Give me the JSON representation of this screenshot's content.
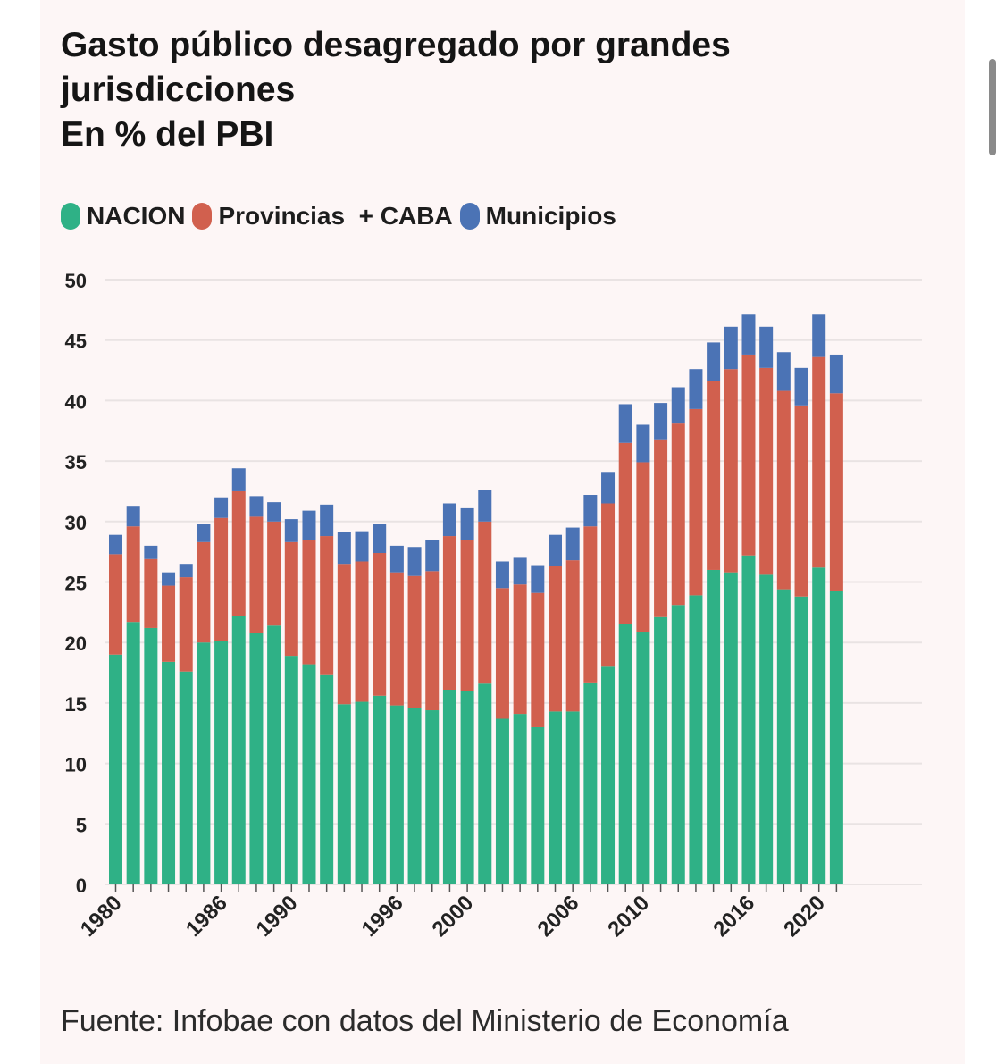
{
  "header": {
    "title_line1": "Gasto público desagregado por grandes",
    "title_line2": "jurisdicciones",
    "title_line3": "En % del PBI"
  },
  "legend": {
    "items": [
      {
        "label": "NACION",
        "color": "#2fb186"
      },
      {
        "label": "Provincias  + CABA",
        "color": "#d1604e"
      },
      {
        "label": "Municipios",
        "color": "#4b73b5"
      }
    ]
  },
  "source": "Fuente: Infobae con datos del Ministerio de Economía",
  "chart_data": {
    "type": "bar",
    "stacked": true,
    "title": "Gasto público desagregado por grandes jurisdicciones",
    "subtitle": "En % del PBI",
    "xlabel": "",
    "ylabel": "",
    "ylim": [
      0,
      50
    ],
    "yticks": [
      0,
      5,
      10,
      15,
      20,
      25,
      30,
      35,
      40,
      45,
      50
    ],
    "grid": true,
    "legend_position": "top-left",
    "categories": [
      1980,
      1981,
      1982,
      1983,
      1984,
      1985,
      1986,
      1987,
      1988,
      1989,
      1990,
      1991,
      1992,
      1993,
      1994,
      1995,
      1996,
      1997,
      1998,
      1999,
      2000,
      2001,
      2002,
      2003,
      2004,
      2005,
      2006,
      2007,
      2008,
      2009,
      2010,
      2011,
      2012,
      2013,
      2014,
      2015,
      2016,
      2017,
      2018,
      2019,
      2020,
      2021
    ],
    "xtick_labels": [
      "1980",
      "1986",
      "1990",
      "1996",
      "2000",
      "2006",
      "2010",
      "2016",
      "2020"
    ],
    "series": [
      {
        "name": "NACION",
        "color": "#2fb186",
        "values": [
          19.0,
          21.7,
          21.2,
          18.4,
          17.6,
          20.0,
          20.1,
          22.2,
          20.8,
          21.4,
          18.9,
          18.2,
          17.3,
          14.9,
          15.1,
          15.6,
          14.8,
          14.6,
          14.4,
          16.1,
          16.0,
          16.6,
          13.7,
          14.1,
          13.0,
          14.3,
          14.3,
          16.7,
          18.0,
          21.5,
          20.9,
          22.1,
          23.1,
          23.9,
          26.0,
          25.8,
          27.2,
          25.6,
          24.4,
          23.8,
          26.2,
          24.3
        ]
      },
      {
        "name": "Provincias  + CABA",
        "color": "#d1604e",
        "values": [
          8.3,
          7.9,
          5.7,
          6.3,
          7.8,
          8.3,
          10.2,
          10.3,
          9.6,
          8.6,
          9.4,
          10.3,
          11.5,
          11.6,
          11.6,
          11.8,
          11.0,
          10.9,
          11.5,
          12.7,
          12.5,
          13.4,
          10.8,
          10.7,
          11.1,
          12.0,
          12.5,
          12.9,
          13.5,
          15.0,
          14.0,
          14.7,
          15.0,
          15.4,
          15.6,
          16.8,
          16.6,
          17.1,
          16.4,
          15.8,
          17.4,
          16.3
        ]
      },
      {
        "name": "Municipios",
        "color": "#4b73b5",
        "values": [
          1.6,
          1.7,
          1.1,
          1.1,
          1.1,
          1.5,
          1.7,
          1.9,
          1.7,
          1.6,
          1.9,
          2.4,
          2.6,
          2.6,
          2.5,
          2.4,
          2.2,
          2.4,
          2.6,
          2.7,
          2.6,
          2.6,
          2.2,
          2.2,
          2.3,
          2.6,
          2.7,
          2.6,
          2.6,
          3.2,
          3.1,
          3.0,
          3.0,
          3.3,
          3.2,
          3.5,
          3.3,
          3.4,
          3.2,
          3.1,
          3.5,
          3.2
        ]
      }
    ]
  }
}
